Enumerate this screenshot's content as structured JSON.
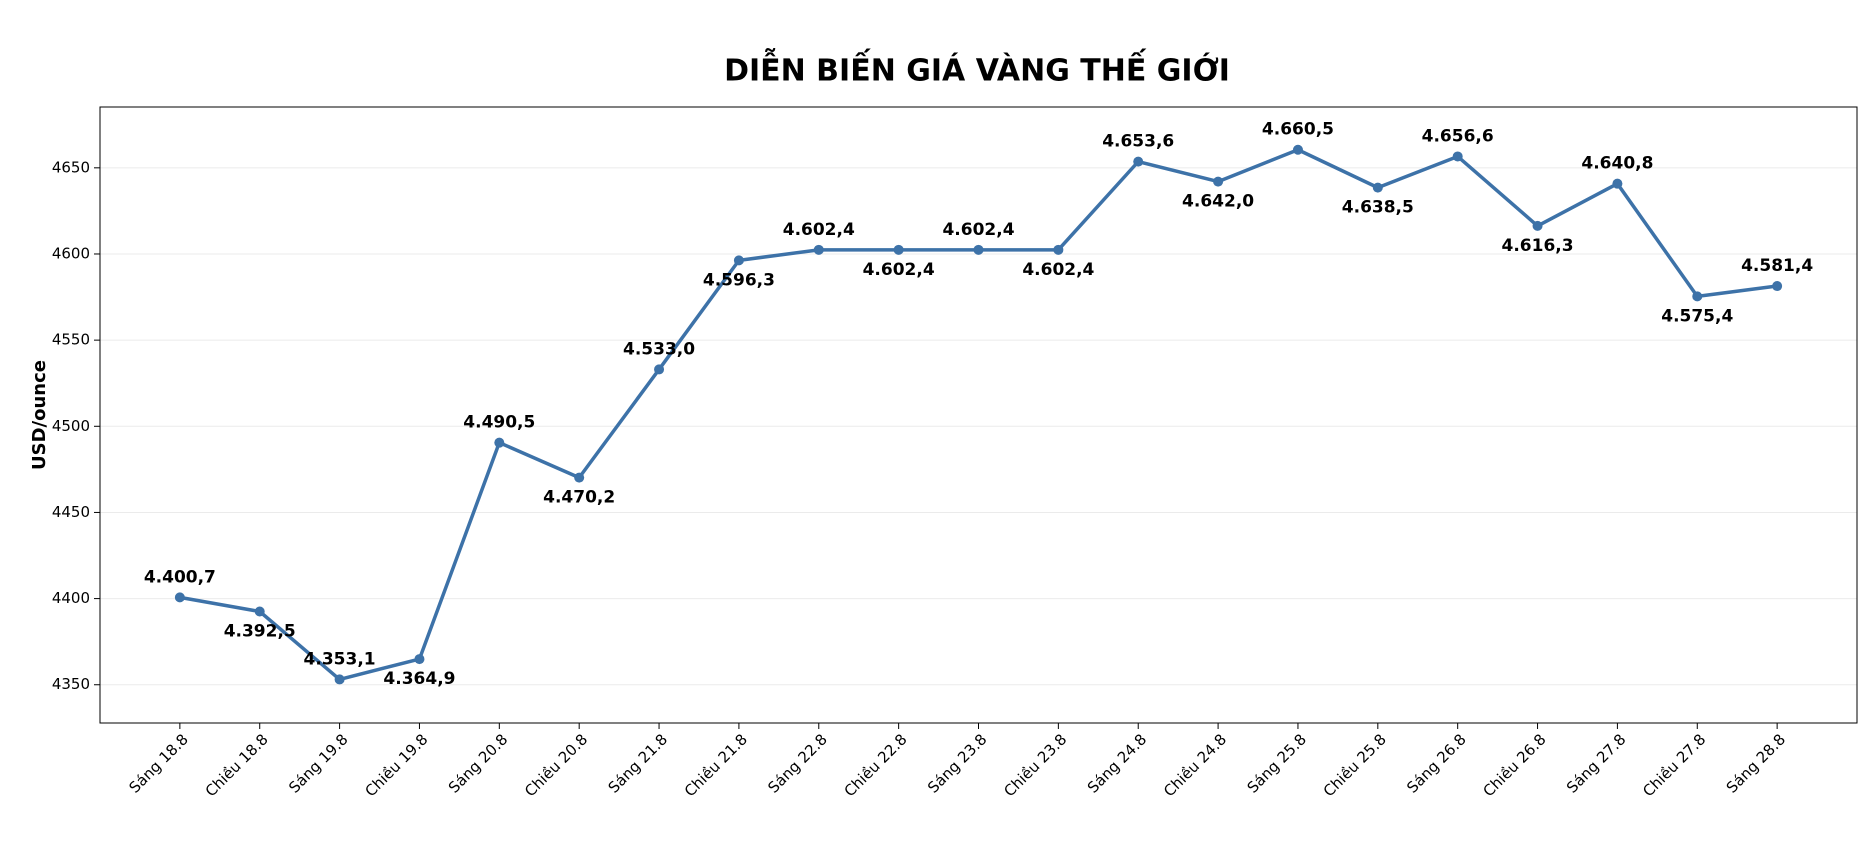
{
  "chart_data": {
    "type": "line",
    "title": "DIỄN BIẾN GIÁ VÀNG THẾ GIỚI",
    "y_label": "USD/ounce",
    "categories": [
      "Sáng 18.8",
      "Chiều 18.8",
      "Sáng 19.8",
      "Chiều 19.8",
      "Sáng 20.8",
      "Chiều 20.8",
      "Sáng 21.8",
      "Chiều 21.8",
      "Sáng 22.8",
      "Chiều 22.8",
      "Sáng 23.8",
      "Chiều 23.8",
      "Sáng 24.8",
      "Chiều 24.8",
      "Sáng 25.8",
      "Chiều 25.8",
      "Sáng 26.8",
      "Chiều 26.8",
      "Sáng 27.8",
      "Chiều 27.8",
      "Sáng 28.8"
    ],
    "values": [
      4400.7,
      4392.5,
      4353.1,
      4364.9,
      4490.5,
      4470.2,
      4533.0,
      4596.3,
      4602.4,
      4602.4,
      4602.4,
      4602.4,
      4653.6,
      4642.0,
      4660.5,
      4638.5,
      4656.6,
      4616.3,
      4640.8,
      4575.4,
      4581.4
    ],
    "value_labels": [
      "4.400,7",
      "4.392,5",
      "4.353,1",
      "4.364,9",
      "4.490,5",
      "4.470,2",
      "4.533,0",
      "4.596,3",
      "4.602,4",
      "4.602,4",
      "4.602,4",
      "4.602,4",
      "4.653,6",
      "4.642,0",
      "4.660,5",
      "4.638,5",
      "4.656,6",
      "4.616,3",
      "4.640,8",
      "4.575,4",
      "4.581,4"
    ],
    "color": "#3d72a8",
    "ylim": [
      4327.8,
      4685.3
    ],
    "yticks": [
      4350,
      4400,
      4450,
      4500,
      4550,
      4600,
      4650
    ],
    "grid": true
  }
}
